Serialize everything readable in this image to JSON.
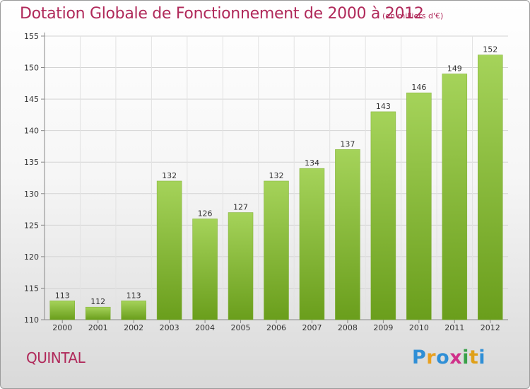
{
  "title": "Dotation Globale de Fonctionnement de 2000 à 2012",
  "subtitle": "(en milliers d'€)",
  "commune": "QUINTAL",
  "logo": {
    "letters": [
      "P",
      "r",
      "o",
      "x",
      "i",
      "t",
      "i"
    ],
    "colors": [
      "#2f8fd6",
      "#e8a020",
      "#2f8fd6",
      "#d0308a",
      "#38a048",
      "#e0a018",
      "#2f8fd6"
    ]
  },
  "colors": {
    "title": "#b0295a",
    "bar_light": "#a5d35a",
    "bar_dark": "#6a9e1c"
  },
  "chart_data": {
    "type": "bar",
    "categories": [
      "2000",
      "2001",
      "2002",
      "2003",
      "2004",
      "2005",
      "2006",
      "2007",
      "2008",
      "2009",
      "2010",
      "2011",
      "2012"
    ],
    "values": [
      113,
      112,
      113,
      132,
      126,
      127,
      132,
      134,
      137,
      143,
      146,
      149,
      152
    ],
    "data_labels": [
      "113",
      "112",
      "113",
      "132",
      "126",
      "127",
      "132",
      "134",
      "137",
      "143",
      "146",
      "149",
      "152"
    ],
    "yticks": [
      110,
      115,
      120,
      125,
      130,
      135,
      140,
      145,
      150,
      155
    ],
    "ylim": [
      110,
      155
    ],
    "grid": true,
    "xlabel": "",
    "ylabel": ""
  }
}
